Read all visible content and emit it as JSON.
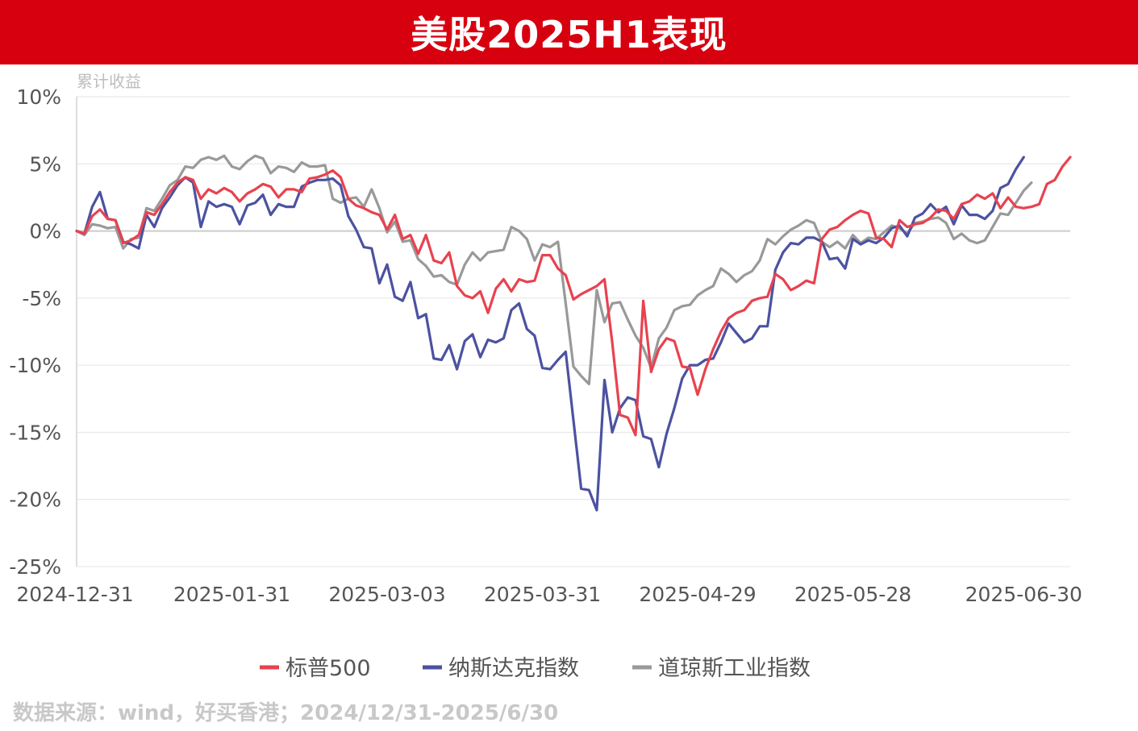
{
  "header": {
    "title": "美股2025H1表现"
  },
  "source": "数据来源：wind，好买香港；2024/12/31-2025/6/30",
  "chart_data": {
    "type": "line",
    "ylabel": "累计收益",
    "ylim": [
      -25,
      10
    ],
    "yticks": [
      10,
      5,
      0,
      -5,
      -10,
      -15,
      -20,
      -25
    ],
    "ytick_labels": [
      "10%",
      "5%",
      "0%",
      "-5%",
      "-10%",
      "-15%",
      "-20%",
      "-25%"
    ],
    "xtick_labels": [
      "2024-12-31",
      "2025-01-31",
      "2025-03-03",
      "2025-03-31",
      "2025-04-29",
      "2025-05-28",
      "2025-06-30"
    ],
    "xtick_index": [
      0,
      20,
      40,
      60,
      80,
      100,
      122
    ],
    "grid": "horizontal",
    "legend_position": "bottom",
    "series": [
      {
        "name": "标普500",
        "color": "#e8424f",
        "values": [
          0.0,
          -0.2,
          1.1,
          1.6,
          0.9,
          0.8,
          -0.9,
          -0.7,
          -0.3,
          1.4,
          1.2,
          2.0,
          2.9,
          3.6,
          4.0,
          3.8,
          2.4,
          3.1,
          2.8,
          3.2,
          2.9,
          2.2,
          2.8,
          3.1,
          3.5,
          3.3,
          2.5,
          3.1,
          3.1,
          2.9,
          3.9,
          4.0,
          4.2,
          4.5,
          4.0,
          2.4,
          1.9,
          1.7,
          1.4,
          1.2,
          0.1,
          1.2,
          -0.6,
          -0.3,
          -1.7,
          -0.3,
          -2.2,
          -2.4,
          -1.6,
          -4.1,
          -4.8,
          -5.0,
          -4.5,
          -6.1,
          -4.3,
          -3.6,
          -4.5,
          -3.6,
          -3.8,
          -3.7,
          -1.8,
          -1.8,
          -2.8,
          -3.3,
          -5.1,
          -4.7,
          -4.4,
          -4.1,
          -3.6,
          -8.3,
          -13.7,
          -13.9,
          -15.2,
          -5.2,
          -10.5,
          -8.8,
          -8.0,
          -8.2,
          -10.1,
          -10.2,
          -12.2,
          -10.3,
          -8.8,
          -7.5,
          -6.5,
          -6.1,
          -5.9,
          -5.2,
          -5.0,
          -4.9,
          -3.2,
          -3.6,
          -4.4,
          -4.1,
          -3.7,
          -3.9,
          -0.6,
          0.1,
          0.3,
          0.8,
          1.2,
          1.5,
          1.3,
          -0.5,
          -0.6,
          -1.2,
          0.8,
          0.3,
          0.5,
          0.6,
          1.0,
          1.6,
          1.5,
          0.9,
          2.0,
          2.2,
          2.7,
          2.4,
          2.8,
          1.7,
          2.5,
          1.8,
          1.7,
          1.8,
          2.0,
          3.5,
          3.8,
          4.8,
          5.5
        ]
      },
      {
        "name": "纳斯达克指数",
        "color": "#4c52a0",
        "values": [
          0.0,
          -0.2,
          1.8,
          2.9,
          0.9,
          0.8,
          -0.8,
          -1.0,
          -1.3,
          1.2,
          0.3,
          1.7,
          2.5,
          3.4,
          4.0,
          3.6,
          0.3,
          2.2,
          1.8,
          2.0,
          1.8,
          0.5,
          1.9,
          2.1,
          2.7,
          1.2,
          2.0,
          1.8,
          1.8,
          3.3,
          3.6,
          3.8,
          3.8,
          3.9,
          3.4,
          1.1,
          0.1,
          -1.2,
          -1.3,
          -3.9,
          -2.5,
          -4.9,
          -5.2,
          -3.8,
          -6.5,
          -6.2,
          -9.5,
          -9.6,
          -8.5,
          -10.3,
          -8.2,
          -7.7,
          -9.4,
          -8.1,
          -8.3,
          -8.0,
          -5.9,
          -5.4,
          -7.3,
          -7.8,
          -10.2,
          -10.3,
          -9.6,
          -9.0,
          -14.1,
          -19.2,
          -19.3,
          -20.8,
          -11.1,
          -15.0,
          -13.2,
          -12.4,
          -12.6,
          -15.3,
          -15.5,
          -17.6,
          -15.1,
          -13.2,
          -11.0,
          -10.0,
          -10.0,
          -9.6,
          -9.5,
          -8.3,
          -6.9,
          -7.6,
          -8.3,
          -8.0,
          -7.1,
          -7.1,
          -2.9,
          -1.6,
          -0.9,
          -1.0,
          -0.5,
          -0.5,
          -0.8,
          -2.1,
          -2.0,
          -2.8,
          -0.6,
          -1.0,
          -0.7,
          -0.9,
          -0.5,
          0.2,
          0.4,
          -0.4,
          1.0,
          1.3,
          2.0,
          1.4,
          1.8,
          0.5,
          1.9,
          1.2,
          1.2,
          0.9,
          1.5,
          3.2,
          3.5,
          4.6,
          5.5
        ]
      },
      {
        "name": "道琼斯工业指数",
        "color": "#999999",
        "values": [
          0.0,
          -0.3,
          0.5,
          0.4,
          0.2,
          0.3,
          -1.3,
          -0.6,
          -0.5,
          1.7,
          1.5,
          2.4,
          3.4,
          3.8,
          4.8,
          4.7,
          5.3,
          5.5,
          5.3,
          5.6,
          4.8,
          4.6,
          5.2,
          5.6,
          5.4,
          4.3,
          4.8,
          4.7,
          4.4,
          5.1,
          4.8,
          4.8,
          4.9,
          2.4,
          2.1,
          2.4,
          2.5,
          1.8,
          3.1,
          1.7,
          -0.1,
          0.7,
          -0.8,
          -0.7,
          -2.1,
          -2.6,
          -3.4,
          -3.3,
          -3.8,
          -4.0,
          -2.5,
          -1.6,
          -2.2,
          -1.6,
          -1.5,
          -1.4,
          0.3,
          0.0,
          -0.6,
          -2.2,
          -1.0,
          -1.2,
          -0.8,
          -5.4,
          -10.1,
          -10.8,
          -11.4,
          -4.4,
          -6.8,
          -5.4,
          -5.3,
          -6.6,
          -7.8,
          -8.7,
          -10.2,
          -8.0,
          -7.2,
          -5.9,
          -5.6,
          -5.5,
          -4.8,
          -4.4,
          -4.1,
          -2.8,
          -3.2,
          -3.8,
          -3.3,
          -3.0,
          -2.2,
          -0.6,
          -1.0,
          -0.4,
          0.1,
          0.4,
          0.8,
          0.6,
          -0.8,
          -1.2,
          -0.8,
          -1.3,
          -0.3,
          -0.9,
          -0.5,
          -0.6,
          -0.1,
          0.4,
          0.2,
          -0.2,
          0.6,
          0.7,
          0.9,
          1.0,
          0.6,
          -0.6,
          -0.2,
          -0.7,
          -0.9,
          -0.7,
          0.3,
          1.3,
          1.2,
          2.1,
          3.0,
          3.6
        ]
      }
    ]
  }
}
